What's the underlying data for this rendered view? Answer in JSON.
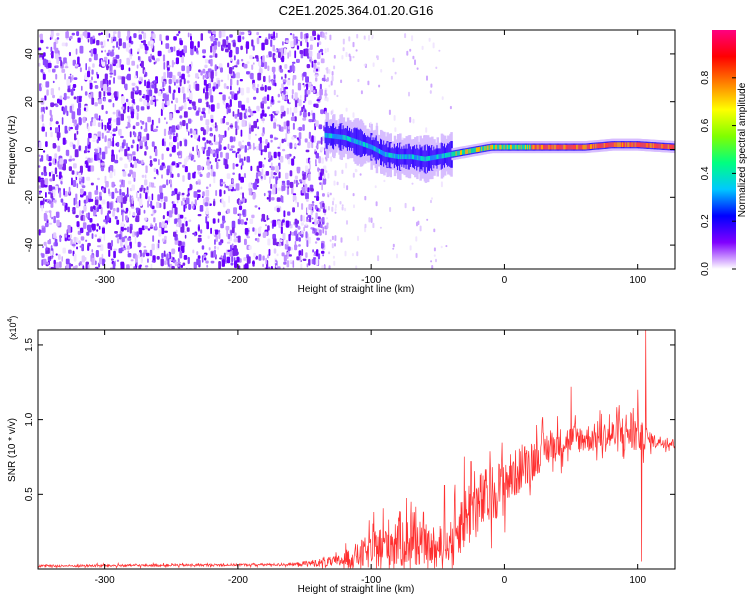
{
  "title": "C2E1.2025.364.01.20.G16",
  "chart_data": [
    {
      "type": "heatmap",
      "name": "spectrogram",
      "xlabel": "Height of straight line (km)",
      "ylabel": "Frequency (Hz)",
      "xlim": [
        -350,
        128
      ],
      "ylim": [
        -50,
        50
      ],
      "xticks": [
        -300,
        -200,
        -100,
        0,
        100
      ],
      "xtick_labels": [
        "-300",
        "-200",
        "-100",
        "0",
        "100"
      ],
      "yticks": [
        -40,
        -20,
        0,
        20,
        40
      ],
      "ytick_labels": [
        "-40",
        "-20",
        "0",
        "20",
        "40"
      ],
      "noise_region_km": [
        -350,
        -135
      ],
      "signal_ridge": [
        {
          "x": -135,
          "f": 6
        },
        {
          "x": -120,
          "f": 5
        },
        {
          "x": -110,
          "f": 3
        },
        {
          "x": -100,
          "f": 1
        },
        {
          "x": -90,
          "f": -2
        },
        {
          "x": -80,
          "f": -3
        },
        {
          "x": -70,
          "f": -3
        },
        {
          "x": -60,
          "f": -4
        },
        {
          "x": -50,
          "f": -3
        },
        {
          "x": -40,
          "f": -2
        },
        {
          "x": -30,
          "f": -1
        },
        {
          "x": -20,
          "f": 0
        },
        {
          "x": -10,
          "f": 1
        },
        {
          "x": 0,
          "f": 1
        },
        {
          "x": 20,
          "f": 1
        },
        {
          "x": 40,
          "f": 1
        },
        {
          "x": 60,
          "f": 1
        },
        {
          "x": 80,
          "f": 2
        },
        {
          "x": 100,
          "f": 2
        },
        {
          "x": 128,
          "f": 1
        }
      ],
      "colorbar": {
        "label": "Normalized spectral amplitude",
        "ticks": [
          0.0,
          0.2,
          0.4,
          0.6,
          0.8
        ],
        "tick_labels": [
          "0.0",
          "0.2",
          "0.4",
          "0.6",
          "0.8"
        ],
        "colors": [
          "#ffffff",
          "#8000ff",
          "#0000ff",
          "#00c8ff",
          "#00ff80",
          "#80ff00",
          "#ffff00",
          "#ff8000",
          "#ff0000",
          "#ff0080"
        ]
      }
    },
    {
      "type": "line",
      "name": "snr",
      "xlabel": "Height of straight line (km)",
      "ylabel": "SNR (10 * v/v)",
      "scale_label": "(x10",
      "scale_exp": "4",
      "scale_close": ")",
      "xlim": [
        -350,
        128
      ],
      "ylim": [
        0,
        1.6
      ],
      "xticks": [
        -300,
        -200,
        -100,
        0,
        100
      ],
      "xtick_labels": [
        "-300",
        "-200",
        "-100",
        "0",
        "100"
      ],
      "yticks": [
        0.5,
        1.0,
        1.5
      ],
      "ytick_labels": [
        "0.5",
        "1.0",
        "1.5"
      ],
      "color": "#ff3030",
      "envelope": [
        {
          "x": -350,
          "mean": 0.02,
          "amp": 0.01
        },
        {
          "x": -160,
          "mean": 0.03,
          "amp": 0.01
        },
        {
          "x": -125,
          "mean": 0.05,
          "amp": 0.05
        },
        {
          "x": -100,
          "mean": 0.12,
          "amp": 0.15
        },
        {
          "x": -80,
          "mean": 0.2,
          "amp": 0.25
        },
        {
          "x": -60,
          "mean": 0.15,
          "amp": 0.15
        },
        {
          "x": -45,
          "mean": 0.12,
          "amp": 0.1
        },
        {
          "x": -30,
          "mean": 0.35,
          "amp": 0.3
        },
        {
          "x": -10,
          "mean": 0.5,
          "amp": 0.25
        },
        {
          "x": 10,
          "mean": 0.65,
          "amp": 0.2
        },
        {
          "x": 30,
          "mean": 0.8,
          "amp": 0.15
        },
        {
          "x": 50,
          "mean": 0.87,
          "amp": 0.12
        },
        {
          "x": 70,
          "mean": 0.88,
          "amp": 0.12
        },
        {
          "x": 85,
          "mean": 0.9,
          "amp": 0.15
        },
        {
          "x": 95,
          "mean": 0.92,
          "amp": 0.2
        },
        {
          "x": 110,
          "mean": 0.86,
          "amp": 0.06
        },
        {
          "x": 128,
          "mean": 0.84,
          "amp": 0.04
        }
      ],
      "spikes": [
        {
          "x": -70,
          "y": 0.45
        },
        {
          "x": -45,
          "y": 0.56
        },
        {
          "x": -25,
          "y": 0.72
        },
        {
          "x": 50,
          "y": 1.22
        },
        {
          "x": 100,
          "y": 1.2
        },
        {
          "x": 103,
          "y": 0.05
        },
        {
          "x": 106,
          "y": 1.6
        }
      ]
    }
  ]
}
